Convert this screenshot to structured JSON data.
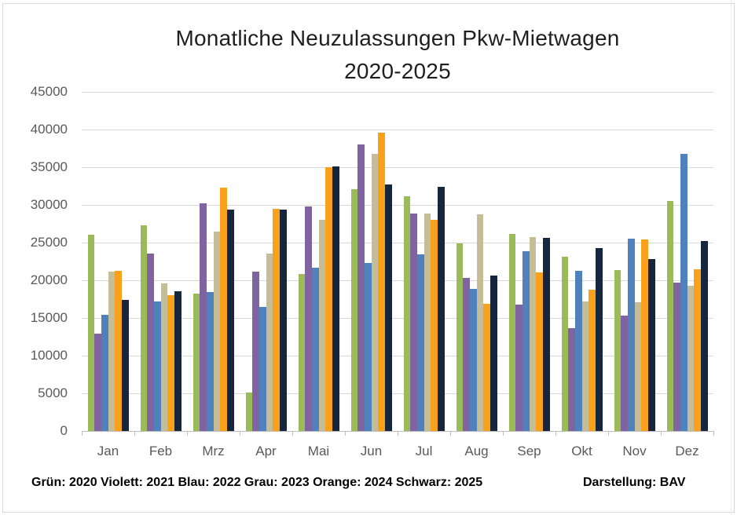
{
  "page": {
    "background": "#ffffff",
    "frame_border_color": "#d9d9d9",
    "gridline_color": "#d9d9d9",
    "axis_color": "#bfbfbf",
    "axis_label_color": "#595959"
  },
  "chart": {
    "title_line1": "Monatliche Neuzulassungen Pkw-Mietwagen",
    "title_line2": "2020-2025",
    "footnote_legend": "Grün: 2020 Violett: 2021 Blau: 2022 Grau: 2023 Orange: 2024 Schwarz: 2025",
    "credit": "Darstellung: BAV"
  },
  "chart_data": {
    "type": "bar",
    "title": "Monatliche Neuzulassungen Pkw-Mietwagen 2020-2025",
    "xlabel": "",
    "ylabel": "",
    "ylim": [
      0,
      45000
    ],
    "ytick_step": 5000,
    "grid": "horizontal",
    "legend_position": "bottom-text",
    "legend": [
      "Grün: 2020",
      "Violett: 2021",
      "Blau: 2022",
      "Grau: 2023",
      "Orange: 2024",
      "Schwarz: 2025"
    ],
    "annotations": [
      "Darstellung: BAV"
    ],
    "categories": [
      "Jan",
      "Feb",
      "Mrz",
      "Apr",
      "Mai",
      "Jun",
      "Jul",
      "Aug",
      "Sep",
      "Okt",
      "Nov",
      "Dez"
    ],
    "series": [
      {
        "name": "2020",
        "color_name": "Grün",
        "color": "#9BBB59",
        "values": [
          26000,
          27300,
          18200,
          5100,
          20800,
          32100,
          31100,
          24900,
          26100,
          23100,
          21400,
          30500
        ]
      },
      {
        "name": "2021",
        "color_name": "Violett",
        "color": "#8064A2",
        "values": [
          12900,
          23500,
          30200,
          21100,
          29800,
          38000,
          28900,
          20300,
          16800,
          13600,
          15300,
          19700
        ]
      },
      {
        "name": "2022",
        "color_name": "Blau",
        "color": "#4F81BD",
        "values": [
          15400,
          17200,
          18400,
          16500,
          21700,
          22300,
          23400,
          18900,
          23900,
          21200,
          25500,
          36800
        ]
      },
      {
        "name": "2023",
        "color_name": "Grau",
        "color": "#C4BD97",
        "values": [
          21100,
          19600,
          26500,
          23500,
          28000,
          36800,
          28900,
          28800,
          25700,
          17200,
          17100,
          19300
        ]
      },
      {
        "name": "2024",
        "color_name": "Orange",
        "color": "#F9A11B",
        "values": [
          21200,
          18000,
          32300,
          29500,
          35000,
          39600,
          28000,
          16900,
          21000,
          18700,
          25400,
          21500
        ]
      },
      {
        "name": "2025",
        "color_name": "Schwarz",
        "color": "#17263F",
        "values": [
          17400,
          18500,
          29400,
          29400,
          35100,
          32700,
          32400,
          20600,
          25600,
          24300,
          22800,
          25200
        ]
      }
    ]
  }
}
